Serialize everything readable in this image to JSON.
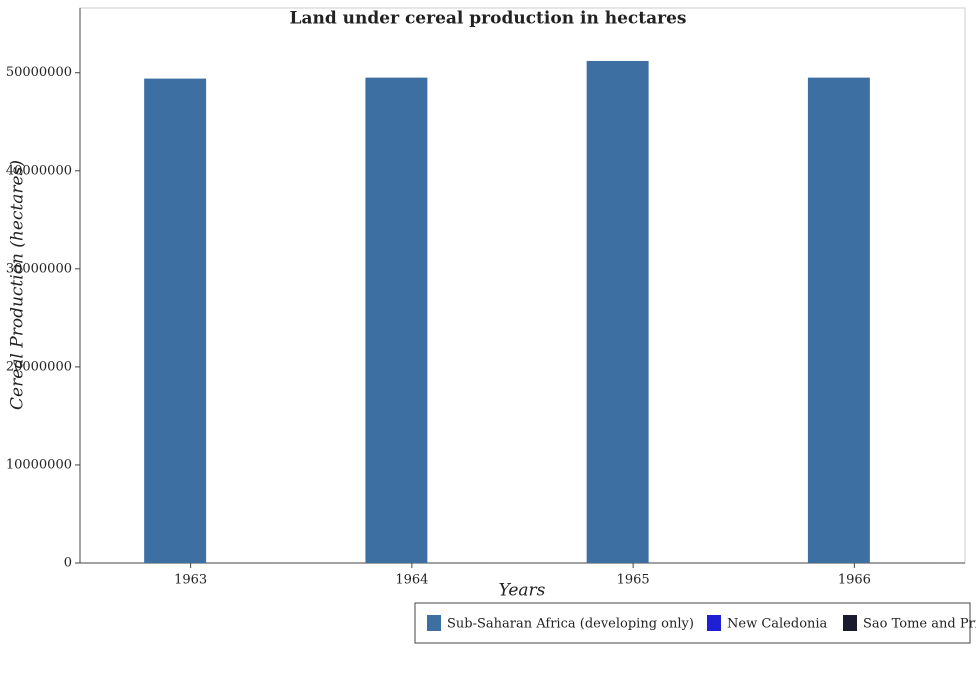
{
  "chart_data": {
    "type": "bar",
    "title": "Land under cereal production in hectares",
    "x_label": "Years",
    "y_label": "Cereal Production (hectares)",
    "categories": [
      "1963",
      "1964",
      "1965",
      "1966"
    ],
    "series": [
      {
        "name": "Sub-Saharan Africa (developing only)",
        "color": "#3d6fa3",
        "values": [
          49400000,
          49500000,
          51200000,
          49500000
        ]
      },
      {
        "name": "New Caledonia",
        "color": "#1f1fd6",
        "values": [
          2500,
          2400,
          2300,
          2200
        ]
      },
      {
        "name": "Sao Tome and Principe",
        "color": "#1a1a2e",
        "values": [
          50,
          50,
          50,
          50
        ]
      }
    ],
    "ylim": [
      0,
      56600000
    ],
    "yticks": [
      0,
      10000000,
      20000000,
      30000000,
      40000000,
      50000000
    ],
    "grid": false,
    "legend": "bottom-right"
  }
}
